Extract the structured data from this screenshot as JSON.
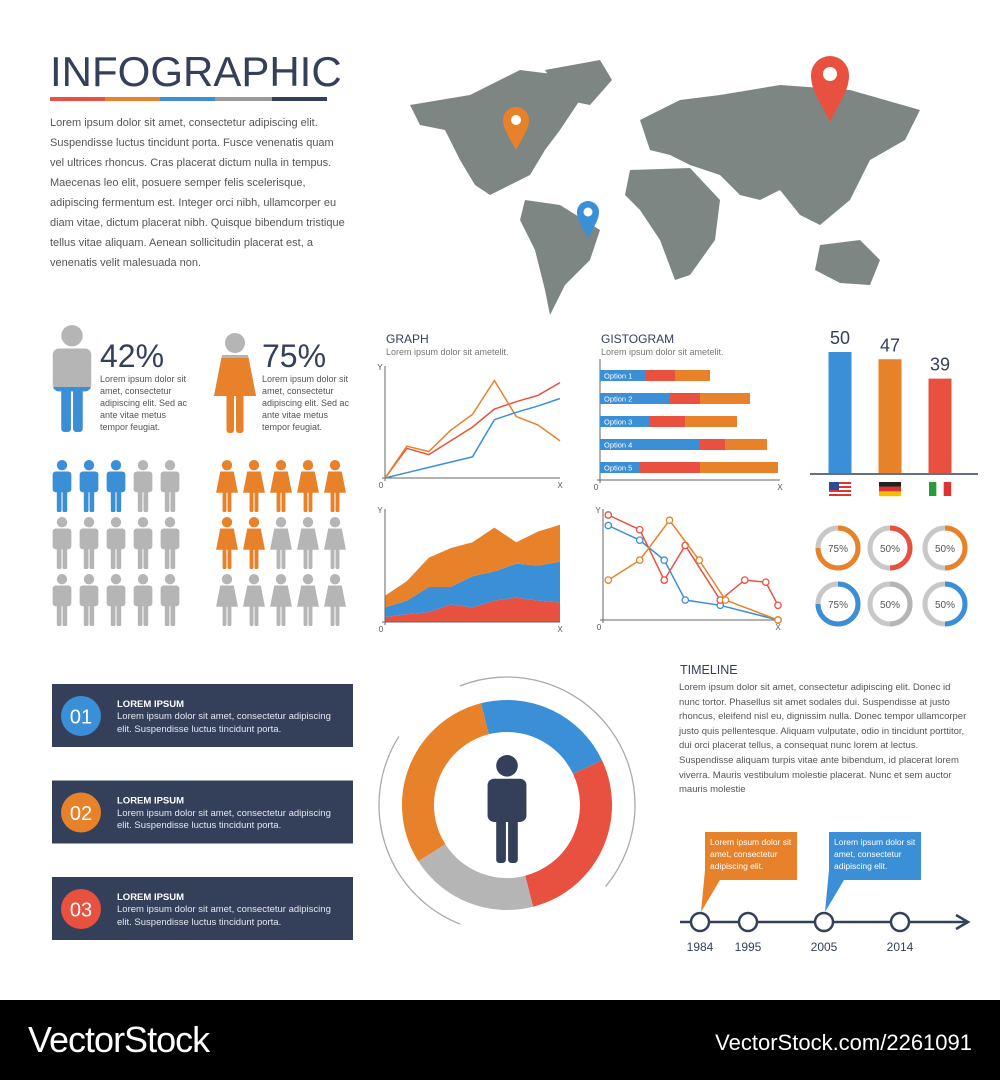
{
  "header": {
    "title": "INFOGRAPHIC",
    "text": "Lorem ipsum dolor sit amet, consectetur adipiscing elit. Suspendisse luctus tincidunt porta. Fusce venenatis quam vel ultrices rhoncus. Cras placerat dictum nulla in tempus. Maecenas leo elit, posuere semper felis scelerisque, adipiscing fermentum est. Integer orci nibh, ullamcorper eu diam vitae, dictum placerat nibh. Quisque bibendum tristique tellus vitae aliquam. Aenean sollicitudin placerat est, a venenatis velit malesuada non."
  },
  "chart_data": [
    {
      "type": "pictogram",
      "values": [
        42
      ],
      "value_labels": [
        "42%"
      ],
      "text": "Lorem ipsum dolor sit amet, consectetur adipiscing elit. Sed ac ante vitae metus tempor feugiat.",
      "color": "#3a8fd6",
      "icons_filled": 3,
      "icons_total": 15
    },
    {
      "type": "pictogram",
      "values": [
        75
      ],
      "value_labels": [
        "75%"
      ],
      "text": "Lorem ipsum dolor sit amet, consectetur adipiscing elit. Sed ac ante vitae metus tempor feugiat.",
      "color": "#e8822a",
      "female": true,
      "icons_filled": 7,
      "icons_total": 15
    },
    {
      "type": "line",
      "title": "GRAPH",
      "subtitle": "Lorem ipsum dolor sit ametelit.",
      "y_label": "Y",
      "x_label": "X",
      "origin_label": "0",
      "x": [
        0,
        12.5,
        25,
        37.5,
        50,
        62.5,
        75,
        87.5,
        100
      ],
      "xlim": [
        0,
        100
      ],
      "ylim": [
        0,
        100
      ],
      "series": [
        {
          "color": "#e8503f",
          "values": [
            0,
            28,
            22,
            35,
            48,
            65,
            72,
            78,
            90
          ]
        },
        {
          "color": "#e8822a",
          "values": [
            0,
            30,
            25,
            45,
            60,
            92,
            58,
            50,
            35
          ]
        },
        {
          "color": "#3a8fd6",
          "values": [
            0,
            5,
            10,
            15,
            20,
            55,
            62,
            68,
            75
          ]
        }
      ]
    },
    {
      "type": "area",
      "stacked": true,
      "y_label": "Y",
      "x_label": "X",
      "origin_label": "0",
      "x": [
        0,
        12.5,
        25,
        37.5,
        50,
        62.5,
        75,
        87.5,
        100
      ],
      "xlim": [
        0,
        100
      ],
      "ylim": [
        0,
        110
      ],
      "series": [
        {
          "color": "#e8503f",
          "values": [
            5,
            8,
            10,
            18,
            15,
            22,
            25,
            22,
            20
          ]
        },
        {
          "color": "#3a8fd6",
          "values": [
            10,
            14,
            26,
            18,
            32,
            30,
            35,
            36,
            42
          ]
        },
        {
          "color": "#e8822a",
          "values": [
            12,
            20,
            30,
            40,
            35,
            45,
            22,
            35,
            38
          ]
        }
      ]
    },
    {
      "type": "hbar",
      "stacked": true,
      "title": "GISTOGRAM",
      "subtitle": "Lorem ipsum dolor sit ametelit.",
      "x_label": "X",
      "origin_label": "0",
      "categories": [
        "Option 1",
        "Option 2",
        "Option 3",
        "Option 4",
        "Option 5"
      ],
      "xlim": [
        0,
        180
      ],
      "series": [
        {
          "color": "#3a8fd6",
          "values": [
            45,
            70,
            50,
            100,
            40
          ]
        },
        {
          "color": "#e8503f",
          "values": [
            30,
            30,
            35,
            25,
            60
          ]
        },
        {
          "color": "#e8822a",
          "values": [
            35,
            50,
            52,
            42,
            78
          ]
        }
      ]
    },
    {
      "type": "line",
      "markers": true,
      "y_label": "Y",
      "x_label": "X",
      "origin_label": "0",
      "xlim": [
        0,
        100
      ],
      "ylim": [
        0,
        100
      ],
      "series": [
        {
          "color": "#3a8fd6",
          "x": [
            3,
            21,
            35,
            47,
            67,
            100
          ],
          "values": [
            90,
            76,
            57,
            19,
            14,
            0
          ]
        },
        {
          "color": "#e8503f",
          "x": [
            3,
            21,
            35,
            47,
            67,
            81,
            93,
            100
          ],
          "values": [
            100,
            86,
            38,
            71,
            19,
            38,
            36,
            14
          ]
        },
        {
          "color": "#e8822a",
          "x": [
            3,
            21,
            38,
            55,
            70,
            100
          ],
          "values": [
            38,
            57,
            95,
            57,
            19,
            0
          ]
        }
      ]
    },
    {
      "type": "bar",
      "categories": [
        null,
        null,
        null
      ],
      "values": [
        50,
        47,
        39
      ],
      "colors": [
        "#3a8fd6",
        "#e8822a",
        "#e8503f"
      ],
      "ylim": [
        0,
        50
      ]
    },
    {
      "type": "rings",
      "values": [
        75,
        50,
        50,
        75,
        50,
        50
      ],
      "value_labels": [
        "75%",
        "50%",
        "50%",
        "75%",
        "50%",
        "50%"
      ],
      "colors": [
        "#e8822a",
        "#e8503f",
        "#e8822a",
        "#3a8fd6",
        "#b5b5b5",
        "#3a8fd6"
      ]
    },
    {
      "type": "donut",
      "values": [
        22,
        28,
        20,
        30
      ],
      "colors": [
        "#3a8fd6",
        "#e8503f",
        "#b5b5b5",
        "#e8822a"
      ]
    }
  ],
  "steps": [
    {
      "number": "01",
      "title": "LOREM IPSUM",
      "text": "Lorem ipsum dolor sit amet, consectetur adipiscing elit. Suspendisse luctus tincidunt porta.",
      "color": "#3a8fd6"
    },
    {
      "number": "02",
      "title": "LOREM IPSUM",
      "text": "Lorem ipsum dolor sit amet, consectetur adipiscing elit. Suspendisse luctus tincidunt porta.",
      "color": "#e8822a"
    },
    {
      "number": "03",
      "title": "LOREM IPSUM",
      "text": "Lorem ipsum dolor sit amet, consectetur adipiscing elit. Suspendisse luctus tincidunt porta.",
      "color": "#e8503f"
    }
  ],
  "timeline": {
    "title": "TIMELINE",
    "text": "Lorem ipsum dolor sit amet, consectetur adipiscing elit. Donec id nunc tortor. Phasellus sit amet sodales dui. Suspendisse at justo rhoncus, eleifend nisl eu, dignissim nulla. Donec tempor ullamcorper justo quis pellentesque. Aliquam vulputate, odio in tincidunt porttitor, dui orci placerat tellus, a consequat nunc lorem at lectus. Suspendisse aliquam turpis vitae ante bibendum, id placerat lorem viverra. Mauris vestibulum molestie placerat. Nunc et sem auctor mauris molestie",
    "years": [
      "1984",
      "1995",
      "2005",
      "2014"
    ],
    "callouts": [
      {
        "text": "Lorem ipsum dolor sit amet, consectetur adipiscing elit.",
        "color": "#e8822a"
      },
      null,
      {
        "text": "Lorem ipsum dolor sit amet, consectetur adipiscing elit.",
        "color": "#3a8fd6"
      },
      null
    ]
  },
  "footer": {
    "brand": "VectorStock",
    "url": "VectorStock.com/2261091"
  }
}
